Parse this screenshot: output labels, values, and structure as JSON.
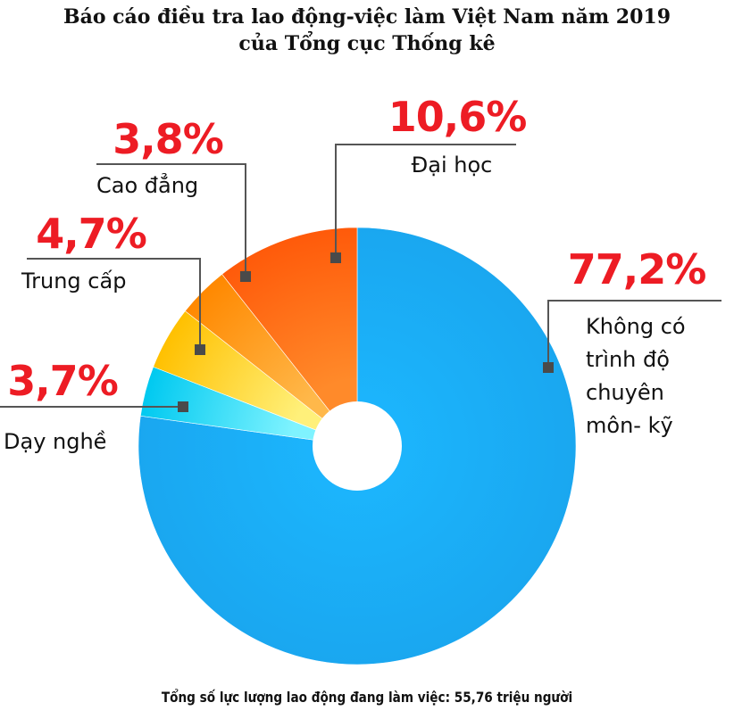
{
  "title": {
    "line1": "Báo cáo điều tra lao động-việc làm Việt Nam năm 2019",
    "line2": "của Tổng cục Thống kê"
  },
  "footer": "Tổng số lực lượng lao động đang làm việc: 55,76 triệu người",
  "colors": {
    "accent_text": "#ed1c24",
    "leader": "#555555",
    "marker": "#4a4a4a"
  },
  "chart_data": {
    "type": "pie",
    "donut": true,
    "slices": [
      {
        "label": "Không có trình độ chuyên môn- kỹ",
        "label_lines": [
          "Không có",
          "trình độ",
          "chuyên",
          "môn- kỹ"
        ],
        "value": 77.2,
        "value_label": "77,2%",
        "color": "#1aa7f0"
      },
      {
        "label": "Dạy nghề",
        "label_lines": [
          "Dạy nghề"
        ],
        "value": 3.7,
        "value_label": "3,7%",
        "color": "#19d7f5"
      },
      {
        "label": "Trung cấp",
        "label_lines": [
          "Trung cấp"
        ],
        "value": 4.7,
        "value_label": "4,7%",
        "color": "#ffc000"
      },
      {
        "label": "Cao đẳng",
        "label_lines": [
          "Cao đẳng"
        ],
        "value": 3.8,
        "value_label": "3,8%",
        "color": "#ff8c00"
      },
      {
        "label": "Đại học",
        "label_lines": [
          "Đại học"
        ],
        "value": 10.6,
        "value_label": "10,6%",
        "color": "#ff5a0a"
      }
    ]
  }
}
